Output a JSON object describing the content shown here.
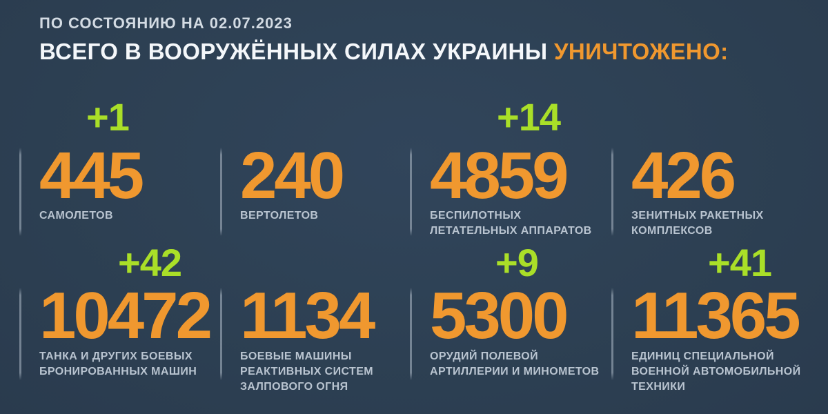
{
  "header": {
    "date_line": "ПО СОСТОЯНИЮ НА 02.07.2023",
    "title_main": "ВСЕГО В ВООРУЖЁННЫХ СИЛАХ УКРАИНЫ ",
    "title_accent": "УНИЧТОЖЕНО:"
  },
  "colors": {
    "background": "#2d4053",
    "accent_orange": "#f0982f",
    "accent_green": "#aadf28",
    "label_text": "#b9c4d0",
    "divider": "#9ba8b6"
  },
  "stats": [
    {
      "delta": "+1",
      "value": "445",
      "label": "САМОЛЕТОВ"
    },
    {
      "delta": "",
      "value": "240",
      "label": "ВЕРТОЛЕТОВ"
    },
    {
      "delta": "+14",
      "value": "4859",
      "label": "БЕСПИЛОТНЫХ\nЛЕТАТЕЛЬНЫХ АППАРАТОВ"
    },
    {
      "delta": "",
      "value": "426",
      "label": "ЗЕНИТНЫХ РАКЕТНЫХ\nКОМПЛЕКСОВ"
    },
    {
      "delta": "+42",
      "value": "10472",
      "label": "ТАНКА И ДРУГИХ БОЕВЫХ\nБРОНИРОВАННЫХ МАШИН"
    },
    {
      "delta": "",
      "value": "1134",
      "label": "БОЕВЫЕ МАШИНЫ\nРЕАКТИВНЫХ СИСТЕМ\nЗАЛПОВОГО ОГНЯ"
    },
    {
      "delta": "+9",
      "value": "5300",
      "label": "ОРУДИЙ ПОЛЕВОЙ\nАРТИЛЛЕРИИ И МИНОМЕТОВ"
    },
    {
      "delta": "+41",
      "value": "11365",
      "label": "ЕДИНИЦ СПЕЦИАЛЬНОЙ\nВОЕННОЙ АВТОМОБИЛЬНОЙ\nТЕХНИКИ"
    }
  ]
}
